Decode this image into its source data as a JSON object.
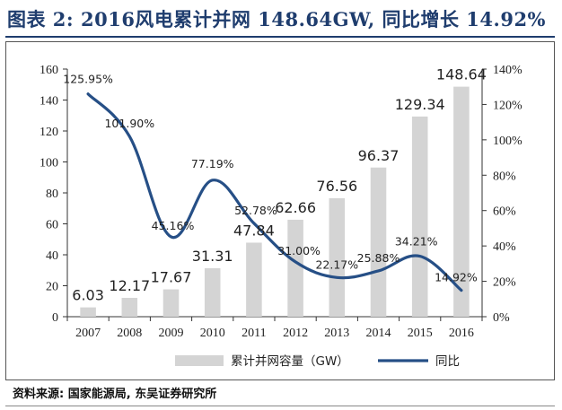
{
  "title": "图表 2: 2016风电累计并网 148.64GW, 同比增长 14.92%",
  "source": "资料来源: 国家能源局, 东吴证券研究所",
  "colors": {
    "bar": "#d4d4d4",
    "line": "#264f86",
    "title": "#1f3d6e"
  },
  "chart_data": {
    "type": "bar+line",
    "categories": [
      "2007",
      "2008",
      "2009",
      "2010",
      "2011",
      "2012",
      "2013",
      "2014",
      "2015",
      "2016"
    ],
    "series": [
      {
        "name": "累计并网容量（GW）",
        "type": "bar",
        "axis": "left",
        "values": [
          6.03,
          12.17,
          17.67,
          31.31,
          47.84,
          62.66,
          76.56,
          96.37,
          129.34,
          148.64
        ],
        "labels": [
          "6.03",
          "12.17",
          "17.67",
          "31.31",
          "47.84",
          "62.66",
          "76.56",
          "96.37",
          "129.34",
          "148.64"
        ]
      },
      {
        "name": "同比",
        "type": "line",
        "axis": "right",
        "values": [
          125.95,
          101.9,
          45.16,
          77.19,
          52.78,
          31.0,
          22.17,
          25.88,
          34.21,
          14.92
        ],
        "labels": [
          "125.95%",
          "101.90%",
          "45.16%",
          "77.19%",
          "52.78%",
          "31.00%",
          "22.17%",
          "25.88%",
          "34.21%",
          "14.92%"
        ]
      }
    ],
    "yleft": {
      "min": 0,
      "max": 160,
      "ticks": [
        "0",
        "20",
        "40",
        "60",
        "80",
        "100",
        "120",
        "140",
        "160"
      ]
    },
    "yright": {
      "min": 0,
      "max": 140,
      "ticks": [
        "0%",
        "20%",
        "40%",
        "60%",
        "80%",
        "100%",
        "120%",
        "140%"
      ]
    },
    "legend": [
      "累计并网容量（GW）",
      "同比"
    ]
  }
}
